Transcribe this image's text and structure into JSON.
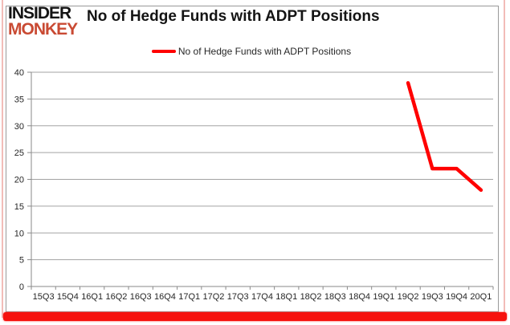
{
  "brand": {
    "line1": "INSIDER",
    "line2": "MONKEY"
  },
  "header": {
    "title": "No of Hedge Funds with ADPT Positions"
  },
  "legend": {
    "label": "No of Hedge Funds with ADPT Positions"
  },
  "chart_data": {
    "type": "line",
    "title": "No of Hedge Funds with ADPT Positions",
    "categories": [
      "15Q3",
      "15Q4",
      "16Q1",
      "16Q2",
      "16Q3",
      "16Q4",
      "17Q1",
      "17Q2",
      "17Q3",
      "17Q4",
      "18Q1",
      "18Q2",
      "18Q3",
      "18Q4",
      "19Q1",
      "19Q2",
      "19Q3",
      "19Q4",
      "20Q1"
    ],
    "series": [
      {
        "name": "No of Hedge Funds with ADPT Positions",
        "color": "#ff0000",
        "values": [
          null,
          null,
          null,
          null,
          null,
          null,
          null,
          null,
          null,
          null,
          null,
          null,
          null,
          null,
          null,
          38,
          22,
          22,
          18
        ]
      }
    ],
    "ylim": [
      0,
      40
    ],
    "yticks": [
      0,
      5,
      10,
      15,
      20,
      25,
      30,
      35,
      40
    ],
    "grid": "horizontal",
    "legend_position": "top-center",
    "line_width": 4.5
  },
  "colors": {
    "series_red": "#ff0000",
    "brand_red": "#c94a33",
    "brand_black": "#141414",
    "grid_gray": "#a3a3a3",
    "axis_gray": "#8a8a8a",
    "tick_text": "#262626",
    "frame_border": "#999999",
    "page_border_pink": "#f2bcb8",
    "bottom_bar_red": "#f6120e"
  }
}
